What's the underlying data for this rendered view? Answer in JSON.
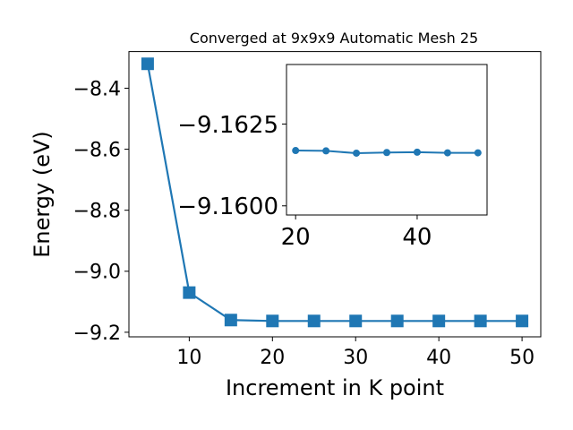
{
  "chart_data": [
    {
      "type": "line",
      "title": "Converged at 9x9x9 Automatic Mesh 25",
      "xlabel": "Increment in K point",
      "ylabel": "Energy (eV)",
      "x": [
        5,
        10,
        15,
        20,
        25,
        30,
        35,
        40,
        45,
        50
      ],
      "series": [
        {
          "values": [
            -8.32,
            -9.07,
            -9.16,
            -9.163,
            -9.163,
            -9.163,
            -9.163,
            -9.163,
            -9.163,
            -9.163
          ],
          "color": "#1f77b4",
          "marker": "square"
        }
      ],
      "xlim": [
        2.75,
        52.25
      ],
      "ylim": [
        -9.215,
        -8.28
      ],
      "xticks": [
        10,
        20,
        30,
        40,
        50
      ],
      "xtick_labels": [
        "10",
        "20",
        "30",
        "40",
        "50"
      ],
      "yticks": [
        -9.2,
        -9.0,
        -8.8,
        -8.6,
        -8.4
      ],
      "ytick_labels": [
        "−9.2",
        "−9.0",
        "−8.8",
        "−8.6",
        "−8.4"
      ],
      "grid": false
    },
    {
      "type": "line",
      "title": "",
      "xlabel": "",
      "ylabel": "",
      "x": [
        20,
        25,
        30,
        35,
        40,
        45,
        50
      ],
      "series": [
        {
          "values": [
            -9.16169,
            -9.16168,
            -9.16161,
            -9.16163,
            -9.16164,
            -9.16162,
            -9.16162
          ],
          "color": "#1f77b4",
          "marker": "circle"
        }
      ],
      "xlim": [
        18.5,
        51.5
      ],
      "ylim": [
        -9.15972,
        -9.16432
      ],
      "xticks": [
        20,
        40
      ],
      "xtick_labels": [
        "20",
        "40"
      ],
      "yticks": [
        -9.16,
        -9.1625
      ],
      "ytick_labels": [
        "−9.1600",
        "−9.1625"
      ],
      "grid": false
    }
  ]
}
